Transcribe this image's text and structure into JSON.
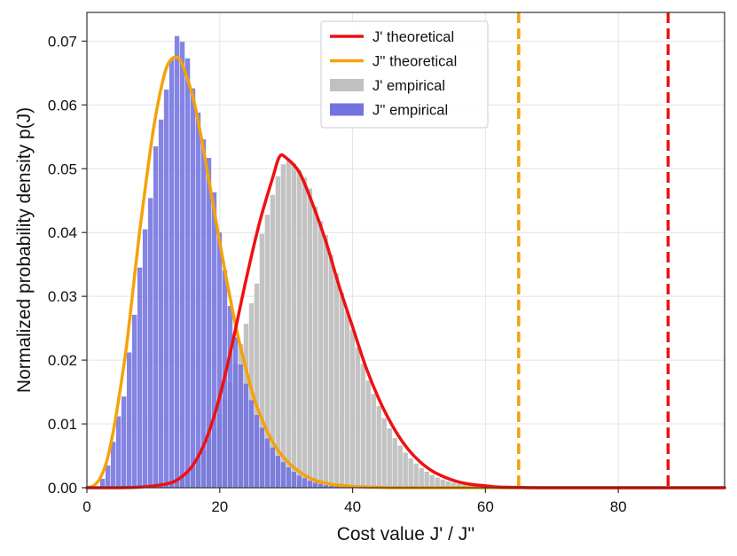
{
  "chart_data": {
    "type": "histogram-with-curves",
    "xlabel": "Cost value J' / J''",
    "ylabel": "Normalized probability density p(J)",
    "xlim": [
      0,
      96
    ],
    "ylim": [
      0,
      0.0745
    ],
    "x_ticks": [
      0,
      20,
      40,
      60,
      80
    ],
    "x_tick_labels": [
      "0",
      "20",
      "40",
      "60",
      "80"
    ],
    "y_ticks": [
      0,
      0.01,
      0.02,
      0.03,
      0.04,
      0.05,
      0.06,
      0.07
    ],
    "y_tick_labels": [
      "0.00",
      "0.01",
      "0.02",
      "0.03",
      "0.04",
      "0.05",
      "0.06",
      "0.07"
    ],
    "grid": true,
    "legend_position": "top-center",
    "legend": [
      {
        "label": "J' theoretical",
        "kind": "line",
        "color": "#ee1111"
      },
      {
        "label": "J'' theoretical",
        "kind": "line",
        "color": "#f5a20a"
      },
      {
        "label": "J' empirical",
        "kind": "patch",
        "color": "#c0c0c0"
      },
      {
        "label": "J'' empirical",
        "kind": "patch",
        "color": "#7373e0"
      }
    ],
    "series": [
      {
        "name": "J' theoretical",
        "kind": "curve",
        "color": "#ee1111",
        "x": [
          0,
          4,
          8,
          12,
          14,
          16,
          18,
          20,
          22,
          24,
          26,
          28,
          29,
          30,
          32,
          34,
          36,
          38,
          40,
          42,
          44,
          46,
          48,
          50,
          52,
          54,
          56,
          58,
          60,
          62,
          65,
          70,
          96
        ],
        "y": [
          0,
          0.0,
          0.0001,
          0.0006,
          0.0015,
          0.0036,
          0.0077,
          0.0143,
          0.0231,
          0.0328,
          0.0416,
          0.0487,
          0.0519,
          0.0517,
          0.0494,
          0.0444,
          0.0385,
          0.0315,
          0.0252,
          0.0189,
          0.0138,
          0.0097,
          0.0065,
          0.0042,
          0.0026,
          0.0016,
          0.0009,
          0.0005,
          0.0003,
          0.0001,
          5e-05,
          0.0,
          0.0
        ]
      },
      {
        "name": "J'' theoretical",
        "kind": "curve",
        "color": "#f5a20a",
        "x": [
          0,
          1,
          2,
          3,
          4,
          5,
          6,
          7,
          8,
          9,
          10,
          11,
          12,
          13,
          14,
          15,
          16,
          17,
          18,
          19,
          20,
          21,
          22,
          23,
          24,
          25,
          26,
          28,
          30,
          32,
          34,
          36,
          38,
          40,
          42,
          44,
          46,
          50,
          56,
          96
        ],
        "y": [
          0,
          0.0003,
          0.0015,
          0.0042,
          0.009,
          0.0153,
          0.0225,
          0.0316,
          0.0407,
          0.0487,
          0.0561,
          0.0618,
          0.0659,
          0.0674,
          0.0671,
          0.0645,
          0.0611,
          0.0561,
          0.0504,
          0.0444,
          0.0385,
          0.0327,
          0.0274,
          0.0226,
          0.0184,
          0.0146,
          0.0116,
          0.0071,
          0.0043,
          0.0025,
          0.0013,
          0.0007,
          0.0004,
          0.0002,
          0.0001,
          5e-05,
          0.0,
          0.0,
          0.0,
          0.0
        ]
      },
      {
        "name": "J' empirical",
        "kind": "histogram",
        "color": "#c0c0c0",
        "bin_width": 0.8,
        "bins_start": [
          10.0,
          10.8,
          11.6,
          12.4,
          13.2,
          14.0,
          14.8,
          15.6,
          16.4,
          17.2,
          18.0,
          18.8,
          19.6,
          20.4,
          21.2,
          22.0,
          22.8,
          23.6,
          24.4,
          25.2,
          26.0,
          26.8,
          27.6,
          28.4,
          29.2,
          30.0,
          30.8,
          31.6,
          32.4,
          33.2,
          34.0,
          34.8,
          35.6,
          36.4,
          37.2,
          38.0,
          38.8,
          39.6,
          40.4,
          41.2,
          42.0,
          42.8,
          43.6,
          44.4,
          45.2,
          46.0,
          46.8,
          47.6,
          48.4,
          49.2,
          50.0,
          50.8,
          51.6,
          52.4,
          53.2,
          54.0,
          54.8,
          55.6,
          56.4,
          57.2,
          58.0,
          58.8,
          59.6
        ],
        "values": [
          0.0003,
          0.0005,
          0.0007,
          0.001,
          0.0014,
          0.0019,
          0.0026,
          0.0035,
          0.0045,
          0.0059,
          0.0075,
          0.0093,
          0.0115,
          0.0139,
          0.0165,
          0.0194,
          0.0225,
          0.0257,
          0.0289,
          0.032,
          0.0398,
          0.0428,
          0.0459,
          0.0488,
          0.0507,
          0.0513,
          0.0508,
          0.0498,
          0.0486,
          0.0469,
          0.0441,
          0.0418,
          0.0396,
          0.0365,
          0.0336,
          0.0306,
          0.0277,
          0.0248,
          0.022,
          0.0194,
          0.0168,
          0.0147,
          0.0128,
          0.0109,
          0.0093,
          0.0078,
          0.0066,
          0.0055,
          0.0046,
          0.0038,
          0.0031,
          0.0025,
          0.002,
          0.0016,
          0.0013,
          0.001,
          0.0008,
          0.0006,
          0.0005,
          0.0004,
          0.0003,
          0.0002,
          0.0001
        ]
      },
      {
        "name": "J'' empirical",
        "kind": "histogram",
        "color": "#7373e0",
        "bin_width": 0.8,
        "bins_start": [
          2.0,
          2.8,
          3.6,
          4.4,
          5.2,
          6.0,
          6.8,
          7.6,
          8.4,
          9.2,
          10.0,
          10.8,
          11.6,
          12.4,
          13.2,
          14.0,
          14.8,
          15.6,
          16.4,
          17.2,
          18.0,
          18.8,
          19.6,
          20.4,
          21.2,
          22.0,
          22.8,
          23.6,
          24.4,
          25.2,
          26.0,
          26.8,
          27.6,
          28.4,
          29.2,
          30.0,
          30.8,
          31.6,
          32.4,
          33.2,
          34.0,
          34.8,
          35.6,
          36.4,
          37.2,
          38.0
        ],
        "values": [
          0.0014,
          0.0035,
          0.0072,
          0.0112,
          0.0143,
          0.0212,
          0.0271,
          0.0345,
          0.0405,
          0.0454,
          0.0535,
          0.0577,
          0.0624,
          0.0671,
          0.0708,
          0.0699,
          0.0673,
          0.0626,
          0.0588,
          0.0546,
          0.0517,
          0.0463,
          0.04,
          0.0341,
          0.0285,
          0.0236,
          0.0193,
          0.0163,
          0.0137,
          0.0114,
          0.0094,
          0.0077,
          0.0063,
          0.005,
          0.004,
          0.0032,
          0.0025,
          0.0019,
          0.0015,
          0.0011,
          0.0008,
          0.0006,
          0.0004,
          0.0003,
          0.0002,
          0.0001
        ]
      }
    ],
    "vlines": [
      {
        "x": 65,
        "color": "#f5a20a",
        "style": "dashed"
      },
      {
        "x": 87.5,
        "color": "#ee1111",
        "style": "dashed"
      }
    ]
  }
}
